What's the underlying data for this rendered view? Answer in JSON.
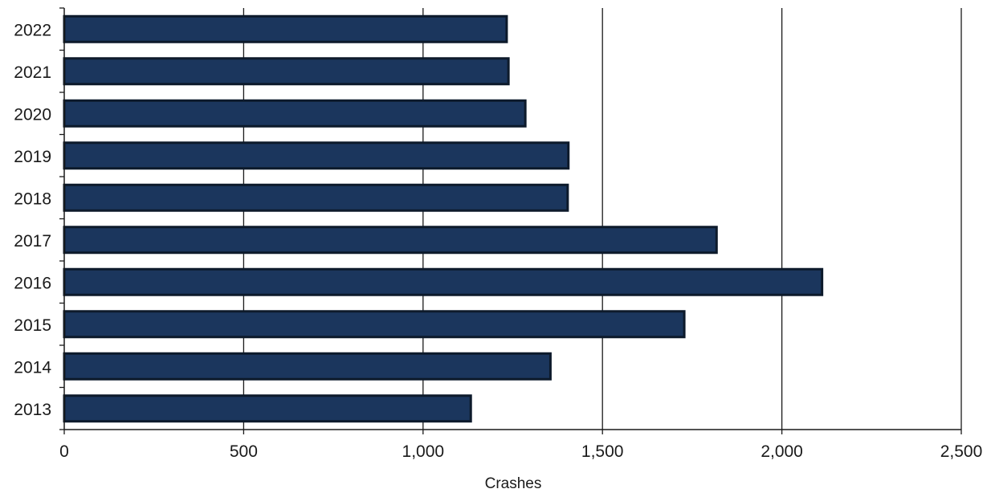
{
  "chart_data": {
    "type": "bar",
    "orientation": "horizontal",
    "categories": [
      "2022",
      "2021",
      "2020",
      "2019",
      "2018",
      "2017",
      "2016",
      "2015",
      "2014",
      "2013"
    ],
    "values": [
      1233,
      1238,
      1285,
      1405,
      1403,
      1818,
      2112,
      1728,
      1355,
      1133
    ],
    "xlabel": "Crashes",
    "ylabel": "",
    "xlim": [
      0,
      2500
    ],
    "x_ticks": [
      0,
      500,
      1000,
      1500,
      2000,
      2500
    ],
    "x_tick_labels": [
      "0",
      "500",
      "1,000",
      "1,500",
      "2,000",
      "2,500"
    ],
    "grid": "vertical",
    "bar_color": "#1b365d",
    "bar_edge_color": "#0d1a2b"
  }
}
